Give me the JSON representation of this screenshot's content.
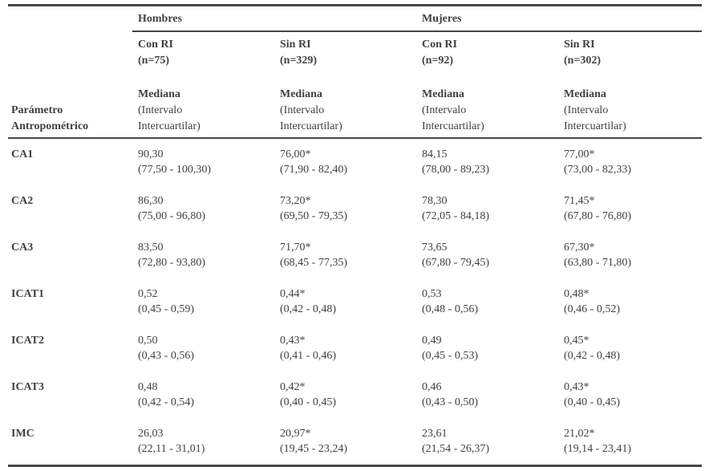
{
  "table": {
    "corner_header": "Parámetro Antropométrico",
    "groups": [
      {
        "label": "Hombres"
      },
      {
        "label": "Mujeres"
      }
    ],
    "columns": [
      {
        "condition": "Con RI",
        "n": "(n=75)",
        "stat": "Mediana",
        "stat_detail": "(Intervalo Intercuartilar)"
      },
      {
        "condition": "Sin RI",
        "n": "(n=329)",
        "stat": "Mediana",
        "stat_detail": "(Intervalo Intercuartilar)"
      },
      {
        "condition": "Con RI",
        "n": "(n=92)",
        "stat": "Mediana",
        "stat_detail": "(Intervalo Intercuartilar)"
      },
      {
        "condition": "Sin RI",
        "n": "(n=302)",
        "stat": "Mediana",
        "stat_detail": "(Intervalo Intercuartilar)"
      }
    ],
    "rows": [
      {
        "label": "CA1",
        "cells": [
          {
            "median": "90,30",
            "iqr": "(77,50 - 100,30)"
          },
          {
            "median": "76,00*",
            "iqr": "(71,90 - 82,40)"
          },
          {
            "median": "84,15",
            "iqr": "(78,00 - 89,23)"
          },
          {
            "median": "77,00*",
            "iqr": "(73,00 - 82,33)"
          }
        ]
      },
      {
        "label": "CA2",
        "cells": [
          {
            "median": "86,30",
            "iqr": "(75,00 - 96,80)"
          },
          {
            "median": "73,20*",
            "iqr": "(69,50 - 79,35)"
          },
          {
            "median": "78,30",
            "iqr": "(72,05 - 84,18)"
          },
          {
            "median": "71,45*",
            "iqr": "(67,80 - 76,80)"
          }
        ]
      },
      {
        "label": "CA3",
        "cells": [
          {
            "median": "83,50",
            "iqr": "(72,80 - 93,80)"
          },
          {
            "median": "71,70*",
            "iqr": "(68,45 - 77,35)"
          },
          {
            "median": "73,65",
            "iqr": "(67,80 - 79,45)"
          },
          {
            "median": "67,30*",
            "iqr": "(63,80 - 71,80)"
          }
        ]
      },
      {
        "label": "ICAT1",
        "cells": [
          {
            "median": "0,52",
            "iqr": "(0,45 - 0,59)"
          },
          {
            "median": "0,44*",
            "iqr": "(0,42 - 0,48)"
          },
          {
            "median": "0,53",
            "iqr": "(0,48 - 0,56)"
          },
          {
            "median": "0,48*",
            "iqr": "(0,46 - 0,52)"
          }
        ]
      },
      {
        "label": "ICAT2",
        "cells": [
          {
            "median": "0,50",
            "iqr": "(0,43 - 0,56)"
          },
          {
            "median": "0,43*",
            "iqr": "(0,41 - 0,46)"
          },
          {
            "median": "0,49",
            "iqr": "(0,45 - 0,53)"
          },
          {
            "median": "0,45*",
            "iqr": "(0,42 - 0,48)"
          }
        ]
      },
      {
        "label": "ICAT3",
        "cells": [
          {
            "median": "0,48",
            "iqr": "(0,42 - 0,54)"
          },
          {
            "median": "0,42*",
            "iqr": "(0,40 - 0,45)"
          },
          {
            "median": "0,46",
            "iqr": "(0,43 - 0,50)"
          },
          {
            "median": "0,43*",
            "iqr": "(0,40 - 0,45)"
          }
        ]
      },
      {
        "label": "IMC",
        "cells": [
          {
            "median": "26,03",
            "iqr": "(22,11 - 31,01)"
          },
          {
            "median": "20,97*",
            "iqr": "(19,45 - 23,24)"
          },
          {
            "median": "23,61",
            "iqr": "(21,54 - 26,37)"
          },
          {
            "median": "21,02*",
            "iqr": "(19,14 - 23,41)"
          }
        ]
      }
    ]
  }
}
